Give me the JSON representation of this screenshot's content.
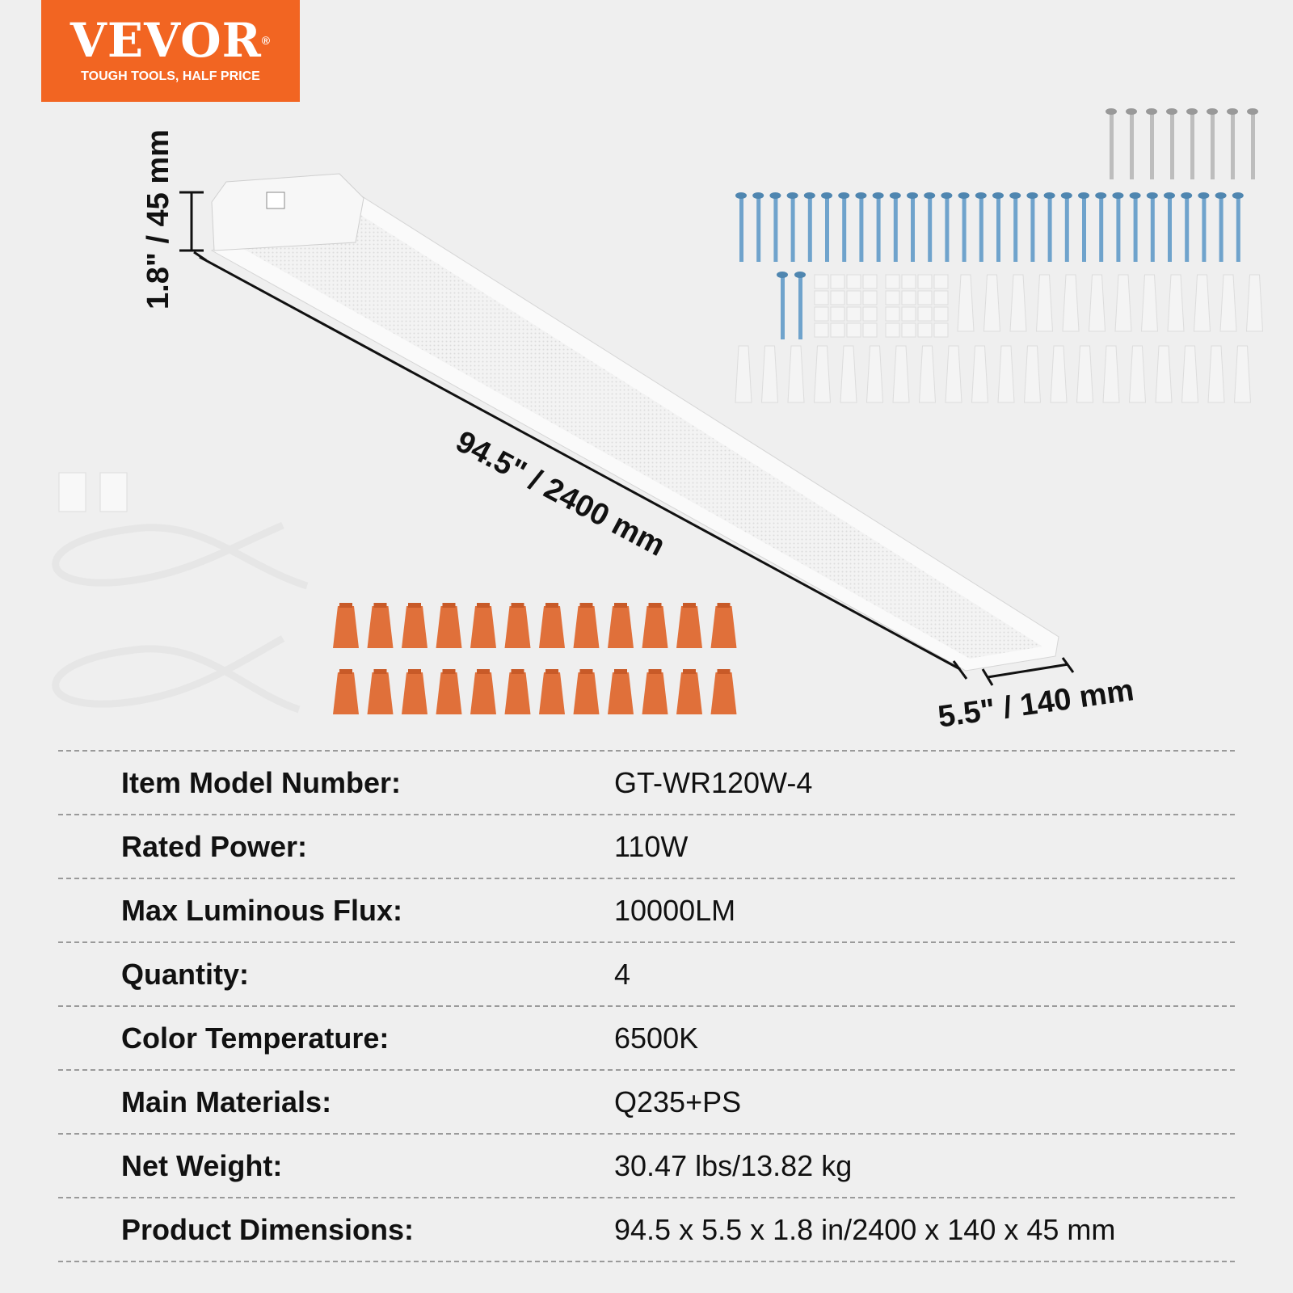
{
  "logo": {
    "brand": "VEVOR",
    "registered": "®",
    "tagline": "TOUGH TOOLS, HALF PRICE",
    "color": "#f26522"
  },
  "dimensions": {
    "height": "1.8\" / 45 mm",
    "length": "94.5\" / 2400 mm",
    "width": "5.5\" / 140 mm"
  },
  "accessories": {
    "wire_nut_color": "#e0703a",
    "screw_color": "#6fa3cc"
  },
  "specs": [
    {
      "label": "Item Model Number:",
      "value": "GT-WR120W-4"
    },
    {
      "label": "Rated Power:",
      "value": "110W"
    },
    {
      "label": "Max Luminous Flux:",
      "value": "10000LM"
    },
    {
      "label": "Quantity:",
      "value": "4"
    },
    {
      "label": "Color Temperature:",
      "value": "6500K"
    },
    {
      "label": "Main Materials:",
      "value": "Q235+PS"
    },
    {
      "label": "Net Weight:",
      "value": "30.47 lbs/13.82 kg"
    },
    {
      "label": "Product Dimensions:",
      "value": "94.5 x 5.5 x 1.8 in/2400 x 140 x 45 mm"
    }
  ]
}
